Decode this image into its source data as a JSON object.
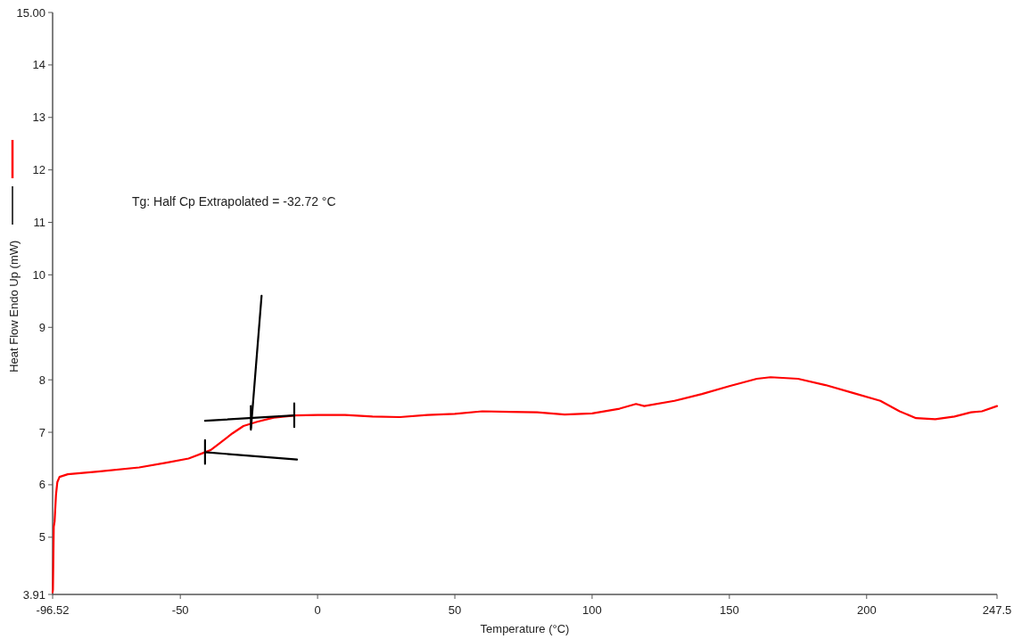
{
  "chart_data": {
    "type": "line",
    "xlabel": "Temperature (°C)",
    "ylabel": "Heat Flow Endo Up (mW)",
    "annotations": [
      "Tg: Half Cp Extrapolated = -32.72 °C"
    ],
    "xlim": [
      -96.52,
      247.5
    ],
    "xticks": [
      -96.52,
      -50,
      0,
      50,
      100,
      150,
      200,
      247.5
    ],
    "ylim": [
      3.91,
      15
    ],
    "yticks": [
      3.91,
      5,
      6,
      7,
      8,
      9,
      10,
      11,
      12,
      13,
      14,
      {
        "value": 15,
        "label": "15.00"
      }
    ],
    "grid": false,
    "marker": "none",
    "line_style": "solid",
    "series": [
      {
        "color": "#ff0000",
        "x": [
          -96.52,
          -96.4,
          -96.1,
          -95.8,
          -95.3,
          -94.8,
          -94,
          -91,
          -80,
          -65,
          -55,
          -47,
          -42,
          -39,
          -36,
          -31,
          -27,
          -22,
          -16,
          -8,
          0,
          10,
          20,
          30,
          40,
          50,
          60,
          70,
          80,
          90,
          100,
          110,
          116,
          119,
          130,
          140,
          150,
          160,
          165,
          175,
          185,
          195,
          205,
          212,
          218,
          225,
          232,
          238,
          242,
          247.5
        ],
        "values": [
          3.95,
          4.0,
          5.2,
          5.3,
          5.8,
          6.05,
          6.15,
          6.2,
          6.25,
          6.33,
          6.42,
          6.5,
          6.6,
          6.66,
          6.78,
          6.98,
          7.12,
          7.2,
          7.28,
          7.32,
          7.33,
          7.33,
          7.3,
          7.29,
          7.33,
          7.35,
          7.4,
          7.39,
          7.38,
          7.34,
          7.36,
          7.45,
          7.54,
          7.5,
          7.6,
          7.73,
          7.88,
          8.02,
          8.05,
          8.02,
          7.9,
          7.75,
          7.6,
          7.4,
          7.27,
          7.25,
          7.3,
          7.38,
          7.4,
          7.5
        ]
      },
      {
        "color": "#000000",
        "x": [
          -41,
          -7.5
        ],
        "values": [
          6.62,
          6.48
        ]
      },
      {
        "color": "#000000",
        "x": [
          -41,
          -8.5
        ],
        "values": [
          7.22,
          7.32
        ]
      },
      {
        "color": "#000000",
        "x": [
          -24.3,
          -20.4
        ],
        "values": [
          7.05,
          9.6
        ]
      },
      {
        "color": "#000000",
        "x": [
          -41,
          -41
        ],
        "values": [
          6.4,
          6.85
        ]
      },
      {
        "color": "#000000",
        "x": [
          -8.5,
          -8.5
        ],
        "values": [
          7.1,
          7.55
        ]
      },
      {
        "color": "#000000",
        "x": [
          -24.3,
          -24.3
        ],
        "values": [
          7.08,
          7.5
        ]
      }
    ]
  }
}
